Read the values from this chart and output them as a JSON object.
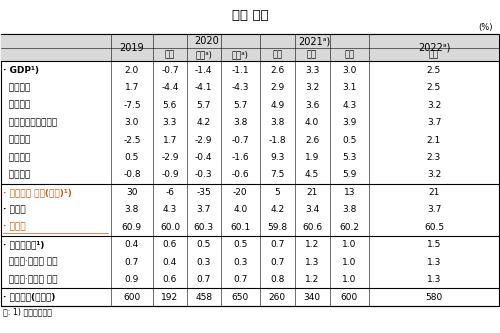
{
  "title": "경제 전망",
  "unit": "(%)",
  "note": "주: 1) 전년동기대비",
  "rows": [
    {
      "label": "· GDP¹)",
      "bold": true,
      "values": [
        "2.0",
        "-0.7",
        "-1.4",
        "-1.1",
        "2.6",
        "3.3",
        "3.0",
        "2.5"
      ],
      "separator_before": false,
      "highlight": false
    },
    {
      "label": "  민간소비",
      "bold": false,
      "values": [
        "1.7",
        "-4.4",
        "-4.1",
        "-4.3",
        "2.9",
        "3.2",
        "3.1",
        "2.5"
      ],
      "separator_before": false,
      "highlight": false
    },
    {
      "label": "  설비투자",
      "bold": false,
      "values": [
        "-7.5",
        "5.6",
        "5.7",
        "5.7",
        "4.9",
        "3.6",
        "4.3",
        "3.2"
      ],
      "separator_before": false,
      "highlight": false
    },
    {
      "label": "  지식재산생산물투자",
      "bold": false,
      "values": [
        "3.0",
        "3.3",
        "4.2",
        "3.8",
        "3.8",
        "4.0",
        "3.9",
        "3.7"
      ],
      "separator_before": false,
      "highlight": false
    },
    {
      "label": "  건설투자",
      "bold": false,
      "values": [
        "-2.5",
        "1.7",
        "-2.9",
        "-0.7",
        "-1.8",
        "2.6",
        "0.5",
        "2.1"
      ],
      "separator_before": false,
      "highlight": false
    },
    {
      "label": "  상품수출",
      "bold": false,
      "values": [
        "0.5",
        "-2.9",
        "-0.4",
        "-1.6",
        "9.3",
        "1.9",
        "5.3",
        "2.3"
      ],
      "separator_before": false,
      "highlight": false
    },
    {
      "label": "  상품수입",
      "bold": false,
      "values": [
        "-0.8",
        "-0.9",
        "-0.3",
        "-0.6",
        "7.5",
        "4.5",
        "5.9",
        "3.2"
      ],
      "separator_before": false,
      "highlight": false
    },
    {
      "label": "· 취업자수 증감(만명)¹)",
      "bold": true,
      "values": [
        "30",
        "-6",
        "-35",
        "-20",
        "5",
        "21",
        "13",
        "21"
      ],
      "separator_before": true,
      "highlight": true
    },
    {
      "label": "· 실업률",
      "bold": true,
      "values": [
        "3.8",
        "4.3",
        "3.7",
        "4.0",
        "4.2",
        "3.4",
        "3.8",
        "3.7"
      ],
      "separator_before": false,
      "highlight": false
    },
    {
      "label": "· 고용률",
      "bold": true,
      "values": [
        "60.9",
        "60.0",
        "60.3",
        "60.1",
        "59.8",
        "60.6",
        "60.2",
        "60.5"
      ],
      "separator_before": false,
      "highlight": true,
      "underline": true
    },
    {
      "label": "· 소비자물가¹)",
      "bold": true,
      "values": [
        "0.4",
        "0.6",
        "0.5",
        "0.5",
        "0.7",
        "1.2",
        "1.0",
        "1.5"
      ],
      "separator_before": true,
      "highlight": false
    },
    {
      "label": "  식료품·에너지 제외",
      "bold": false,
      "values": [
        "0.7",
        "0.4",
        "0.3",
        "0.3",
        "0.7",
        "1.3",
        "1.0",
        "1.3"
      ],
      "separator_before": false,
      "highlight": false
    },
    {
      "label": "  농산물·석유류 제외",
      "bold": false,
      "values": [
        "0.9",
        "0.6",
        "0.7",
        "0.7",
        "0.8",
        "1.2",
        "1.0",
        "1.3"
      ],
      "separator_before": false,
      "highlight": false
    },
    {
      "label": "· 경상수지(억달러)",
      "bold": true,
      "values": [
        "600",
        "192",
        "458",
        "650",
        "260",
        "340",
        "600",
        "580"
      ],
      "separator_before": true,
      "highlight": false
    }
  ],
  "header_bg": "#d9d9d9",
  "bg_color": "#ffffff",
  "text_color": "#000000",
  "border_color": "#000000",
  "highlight_color": "#c55a11"
}
